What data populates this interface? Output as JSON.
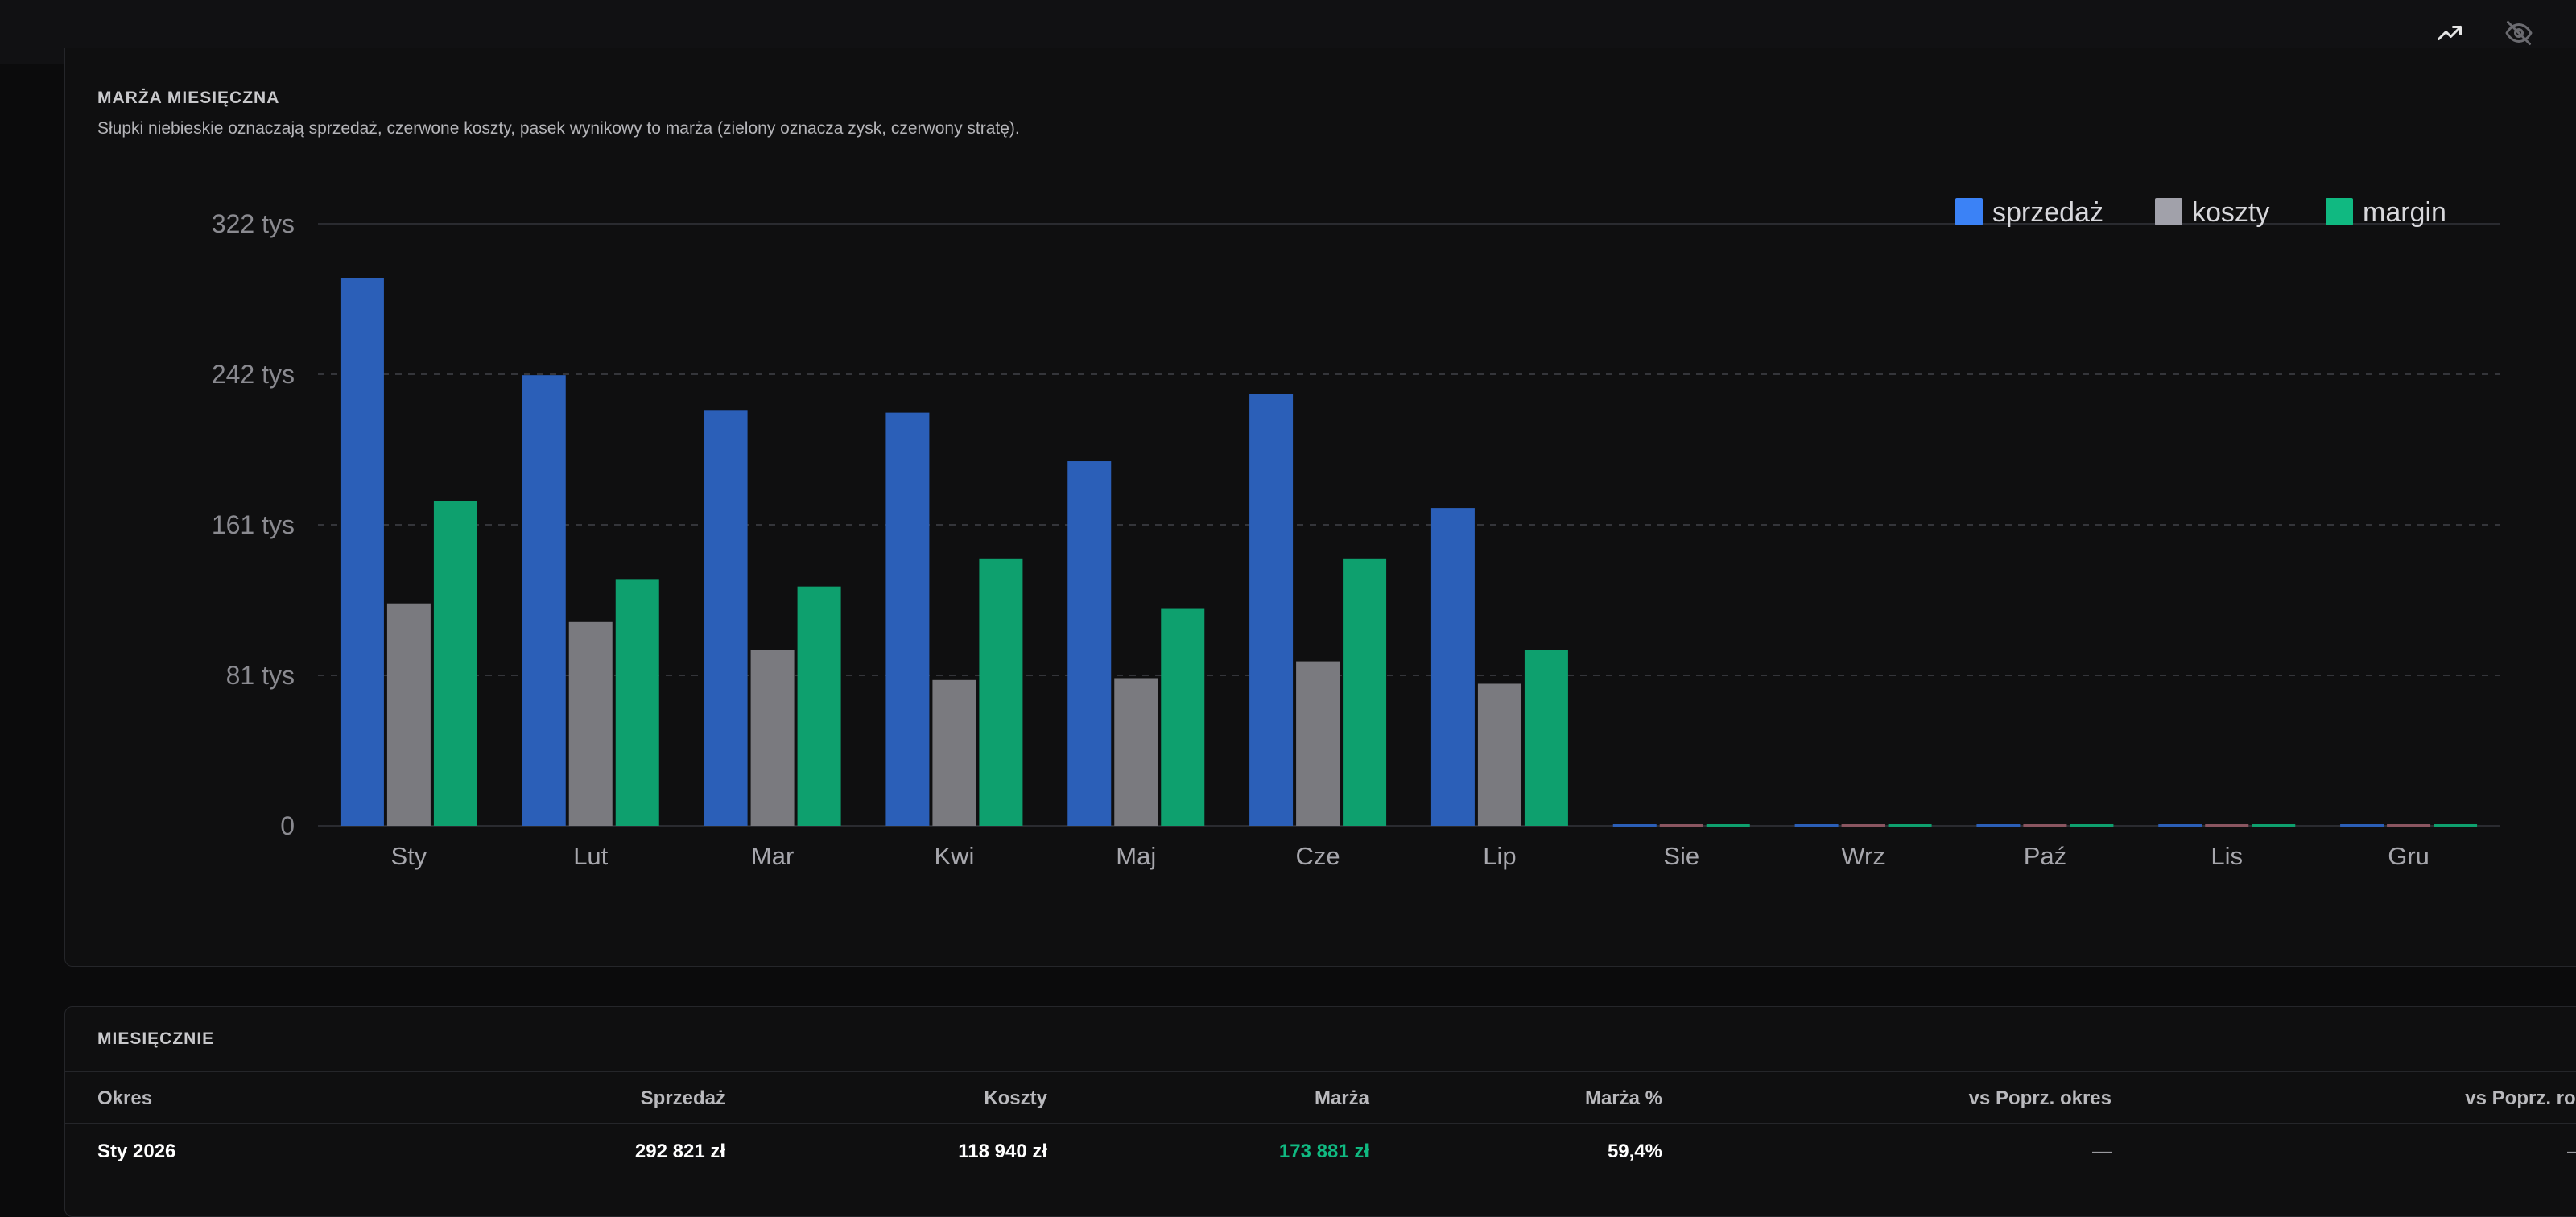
{
  "header": {
    "icons": [
      "trending-up-icon",
      "eye-off-icon"
    ]
  },
  "chart_panel": {
    "title": "MARŻA MIESIĘCZNA",
    "description": "Słupki niebieskie oznaczają sprzedaż, czerwone koszty, pasek wynikowy to marża (zielony oznacza zysk, czerwony stratę)."
  },
  "chart_data": {
    "type": "bar",
    "categories": [
      "Sty",
      "Lut",
      "Mar",
      "Kwi",
      "Maj",
      "Cze",
      "Lip",
      "Sie",
      "Wrz",
      "Paź",
      "Lis",
      "Gru"
    ],
    "series": [
      {
        "name": "sprzedaż",
        "color": "#3b82f6",
        "bar_color": "#2b5fb8",
        "values": [
          292821,
          241000,
          222000,
          221000,
          195000,
          231000,
          170000,
          0,
          0,
          0,
          0,
          0
        ]
      },
      {
        "name": "koszty",
        "color": "#a1a1aa",
        "bar_color": "#7a7a7f",
        "values": [
          118940,
          109000,
          94000,
          78000,
          79000,
          88000,
          76000,
          0,
          0,
          0,
          0,
          0
        ]
      },
      {
        "name": "margin",
        "color": "#10b981",
        "bar_color": "#0ea06e",
        "values": [
          173881,
          132000,
          128000,
          143000,
          116000,
          143000,
          94000,
          0,
          0,
          0,
          0,
          0
        ]
      }
    ],
    "y_ticks": [
      "0",
      "81 tys",
      "161 tys",
      "242 tys",
      "322 tys"
    ],
    "y_tick_values": [
      0,
      80500,
      161000,
      241500,
      322000
    ],
    "ylim": [
      0,
      322000
    ],
    "grid": true,
    "legend_position": "top-right"
  },
  "table": {
    "title": "MIESIĘCZNIE",
    "columns": [
      "Okres",
      "Sprzedaż",
      "Koszty",
      "Marża",
      "Marża %",
      "vs Poprz. okres",
      "vs Poprz. rok"
    ],
    "rows": [
      [
        "Sty 2026",
        "292 821 zł",
        "118 940 zł",
        "173 881 zł",
        "59,4%",
        "—",
        "—"
      ]
    ]
  }
}
